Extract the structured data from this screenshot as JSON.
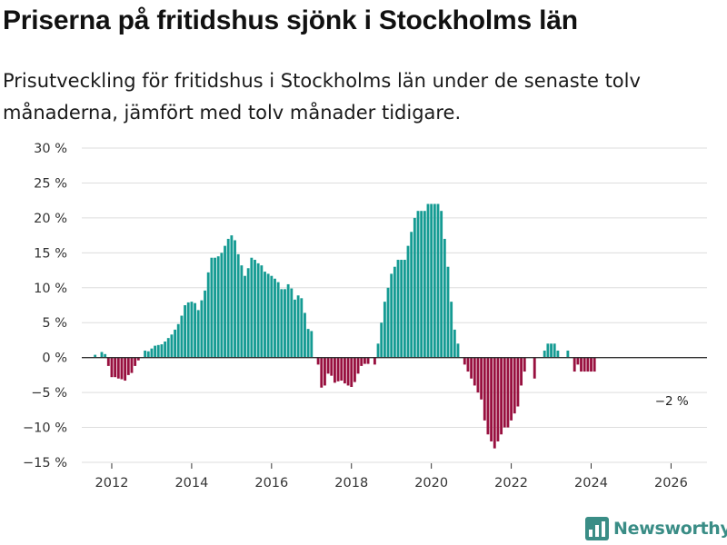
{
  "header": {
    "title": "Priserna på fritidshus sjönk i Stockholms län",
    "subtitle": "Prisutveckling för fritidshus i Stockholms län under de senaste tolv månaderna, jämfört med tolv månader tidigare."
  },
  "brand": {
    "name": "Newsworthy",
    "icon": "newsworthy-logo-icon"
  },
  "colors": {
    "positive": "#159b93",
    "negative": "#98103f",
    "grid": "#dddddd",
    "zero_line": "#333333",
    "brand": "#3a8d86"
  },
  "chart_data": {
    "type": "bar",
    "title": "Priserna på fritidshus sjönk i Stockholms län",
    "subtitle": "Prisutveckling för fritidshus i Stockholms län under de senaste tolv månaderna, jämfört med tolv månader tidigare.",
    "xlabel": "",
    "ylabel": "",
    "ylim": [
      -15,
      30
    ],
    "xlim": [
      2011.25,
      2026.9
    ],
    "grid": true,
    "legend": "none",
    "y_ticks": [
      -15,
      -10,
      -5,
      0,
      5,
      10,
      15,
      20,
      25,
      30
    ],
    "y_tick_labels": [
      "−15 %",
      "−10 %",
      "−5 %",
      "0 %",
      "5 %",
      "10 %",
      "15 %",
      "20 %",
      "25 %",
      "30 %"
    ],
    "x_ticks": [
      2012,
      2014,
      2016,
      2018,
      2020,
      2022,
      2024,
      2026
    ],
    "x_tick_labels": [
      "2012",
      "2014",
      "2016",
      "2018",
      "2020",
      "2022",
      "2024",
      "2026"
    ],
    "x_start": 2011.5,
    "x_step": 0.083333,
    "values": [
      0,
      0.4,
      0,
      0.8,
      0.5,
      -1.2,
      -2.8,
      -2.8,
      -3,
      -3.1,
      -3.3,
      -2.5,
      -2.2,
      -1.2,
      -0.4,
      0,
      1,
      0.9,
      1.3,
      1.7,
      1.8,
      1.9,
      2.3,
      2.8,
      3.3,
      4,
      4.8,
      6,
      7.5,
      7.9,
      8,
      7.8,
      6.8,
      8.2,
      9.6,
      12.2,
      14.3,
      14.3,
      14.5,
      15,
      16,
      17,
      17.5,
      16.8,
      14.8,
      13.2,
      11.7,
      12.8,
      14.3,
      14,
      13.5,
      13.2,
      12.3,
      12,
      11.7,
      11.3,
      10.8,
      9.8,
      9.8,
      10.5,
      9.9,
      8.3,
      8.9,
      8.5,
      6.4,
      4.1,
      3.8,
      0,
      -1,
      -4.3,
      -4,
      -2.3,
      -2.6,
      -3.6,
      -3.4,
      -3.3,
      -3.7,
      -4,
      -4.2,
      -3.5,
      -2.3,
      -1.2,
      -0.9,
      -0.9,
      0,
      -1,
      2,
      5,
      8,
      10,
      12,
      13,
      14,
      14,
      14,
      16,
      18,
      20,
      21,
      21,
      21,
      22,
      22,
      22,
      22,
      21,
      17,
      13,
      8,
      4,
      2,
      0,
      -1,
      -2,
      -3,
      -4,
      -5,
      -6,
      -9,
      -11,
      -12,
      -13,
      -12,
      -11,
      -10,
      -10,
      -9,
      -8,
      -7,
      -4,
      -2,
      0,
      0,
      -3,
      0,
      0,
      1,
      2,
      2,
      2,
      1,
      0,
      0,
      1,
      0,
      -2,
      -1,
      -2,
      -2,
      -2,
      -2,
      -2
    ],
    "annotations": [
      {
        "text": "−2 %",
        "x": 2026.2,
        "y": -2
      }
    ]
  }
}
